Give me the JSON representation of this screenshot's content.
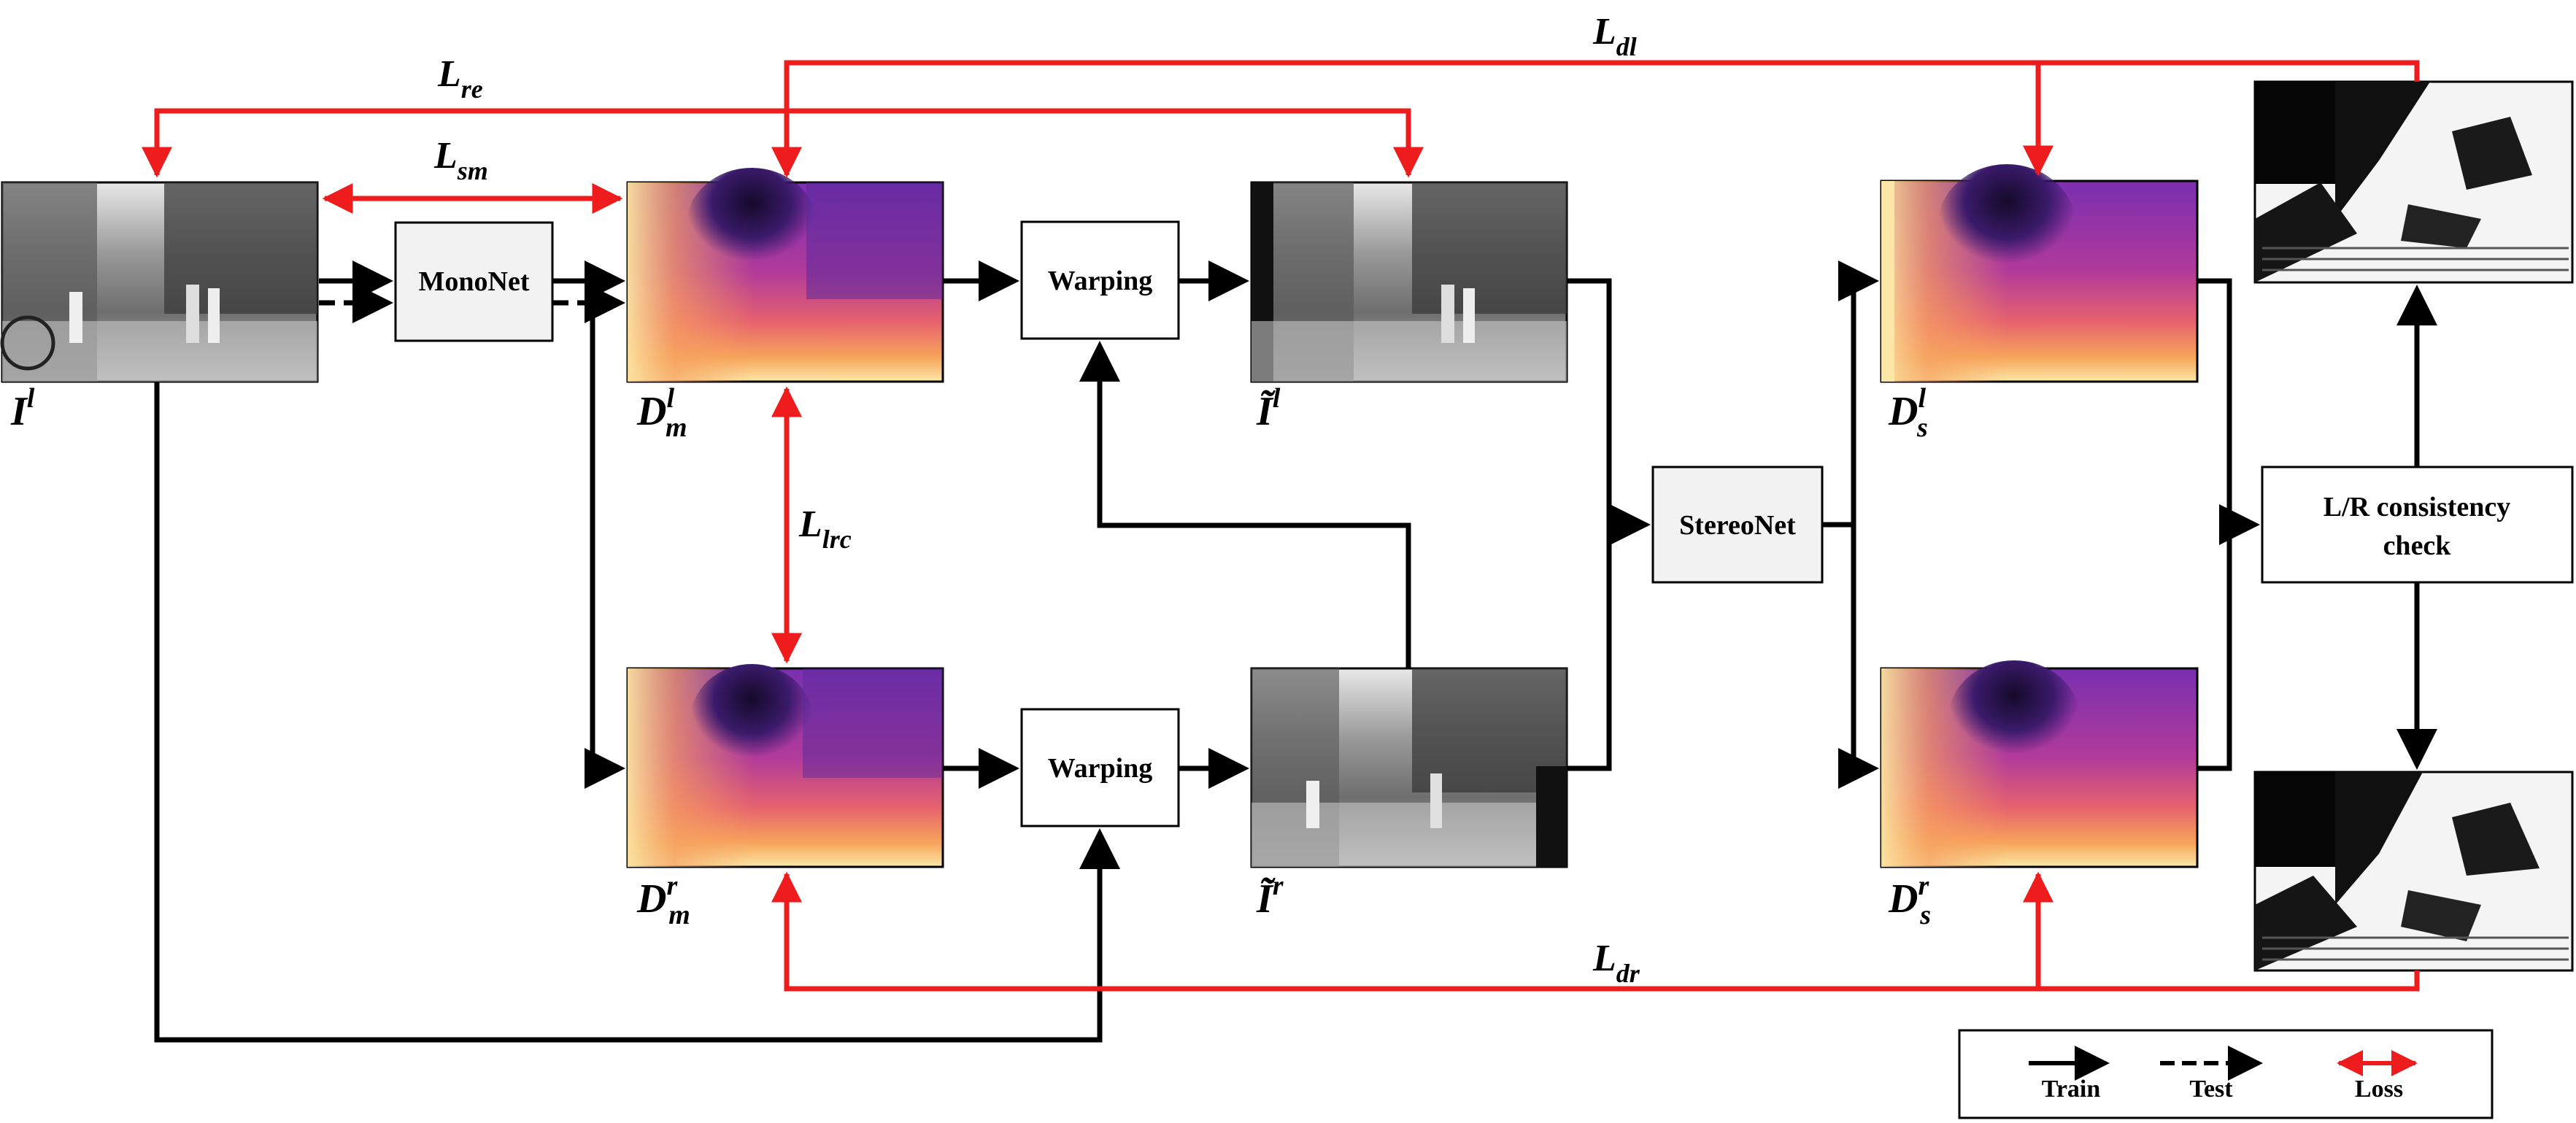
{
  "boxes": {
    "mononet": "MonoNet",
    "warping_top": "Warping",
    "warping_bottom": "Warping",
    "stereonet": "StereoNet",
    "lr_check_line1": "L/R consistency",
    "lr_check_line2": "check"
  },
  "labels": {
    "input_left": {
      "base": "I",
      "sup": "l",
      "sub": ""
    },
    "mono_left": {
      "base": "D",
      "sup": "l",
      "sub": "m"
    },
    "mono_right": {
      "base": "D",
      "sup": "r",
      "sub": "m"
    },
    "warp_left": {
      "base": "Ĩ",
      "sup": "l",
      "sub": ""
    },
    "warp_right": {
      "base": "Ĩ",
      "sup": "r",
      "sub": ""
    },
    "stereo_left": {
      "base": "D",
      "sup": "l",
      "sub": "s"
    },
    "stereo_right": {
      "base": "D",
      "sup": "r",
      "sub": "s"
    }
  },
  "losses": {
    "re": {
      "base": "L",
      "sub": "re"
    },
    "sm": {
      "base": "L",
      "sub": "sm"
    },
    "lrc": {
      "base": "L",
      "sub": "lrc"
    },
    "dl": {
      "base": "L",
      "sub": "dl"
    },
    "dr": {
      "base": "L",
      "sub": "dr"
    }
  },
  "legend": {
    "train": "Train",
    "test": "Test",
    "loss": "Loss"
  },
  "colors": {
    "loss": "#ee1c1c",
    "flow": "#000000",
    "box_fill": "#f2f2f2"
  }
}
